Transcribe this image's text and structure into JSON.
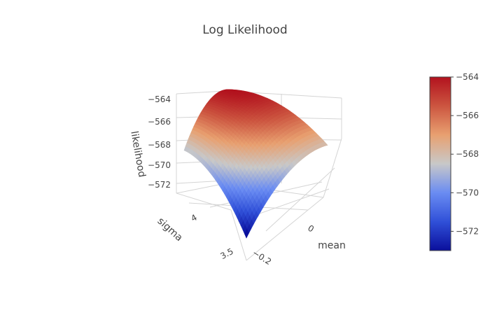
{
  "title": "Log Likelihood",
  "colors": {
    "scale": [
      "#0a0f9c",
      "#3050d8",
      "#6a8cf2",
      "#c8c8c8",
      "#e8a070",
      "#cc5540",
      "#b2121e"
    ],
    "axis_line": "#bdbdbd",
    "grid": "#d4d4d4"
  },
  "chart_data": {
    "type": "surface",
    "title": "Log Likelihood",
    "xlabel": "mean",
    "ylabel": "sigma",
    "zlabel": "likelihood",
    "x_ticks": [
      "0",
      "−0.2"
    ],
    "y_ticks": [
      "4",
      "3.5"
    ],
    "z_ticks": [
      "−564",
      "−566",
      "−568",
      "−570",
      "−572"
    ],
    "z_range": [
      -573.5,
      -563.8
    ],
    "peak": {
      "mean": 0.05,
      "sigma": 4.1,
      "likelihood": -564.0
    },
    "corners": {
      "back": -564.4,
      "left": -568.7,
      "right": -568.0,
      "front": -573.3
    },
    "colorbar": {
      "range": [
        -573,
        -564
      ],
      "ticks": [
        "−564",
        "−566",
        "−568",
        "−570",
        "−572"
      ]
    }
  }
}
